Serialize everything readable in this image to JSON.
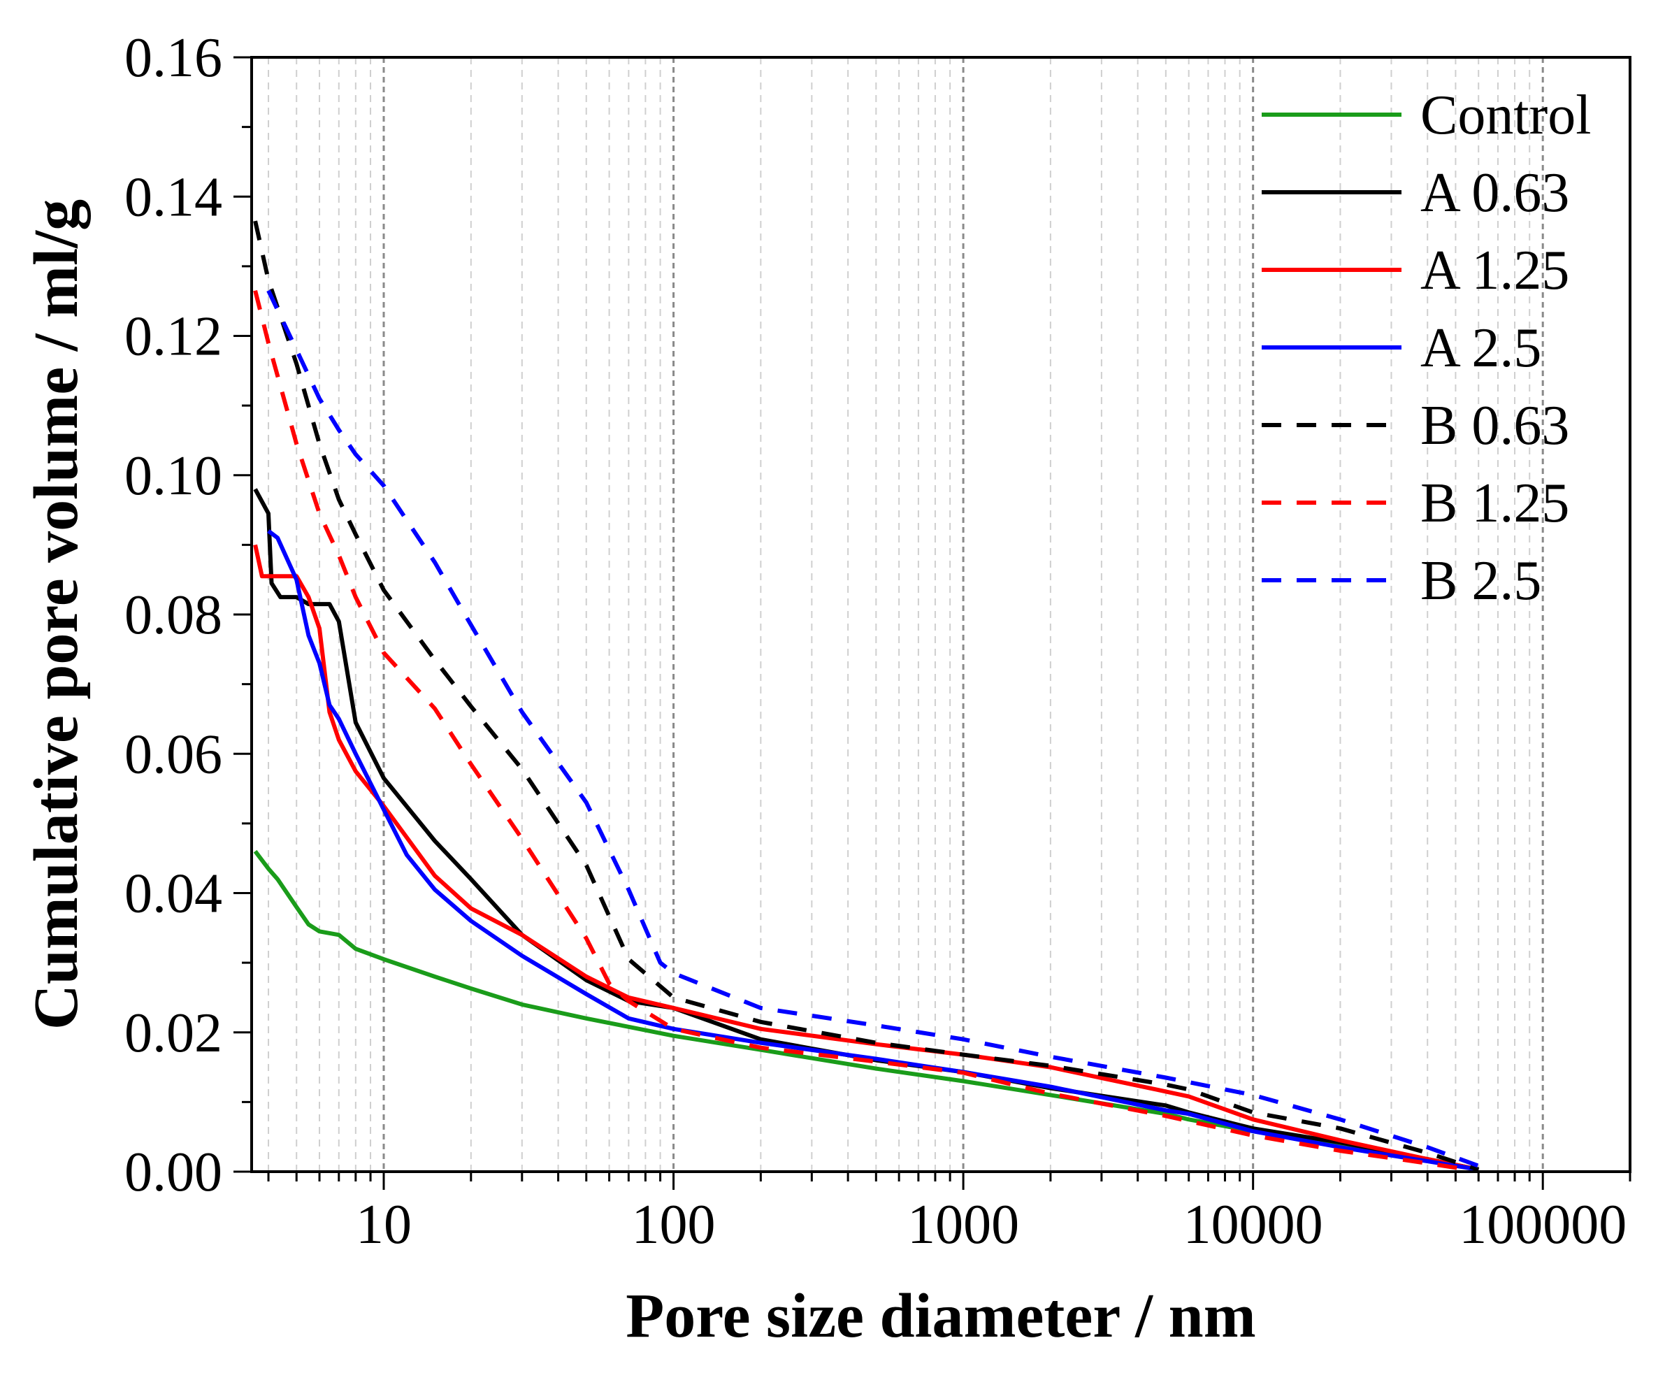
{
  "chart_data": {
    "type": "line",
    "title": "",
    "xlabel": "Pore size diameter / nm",
    "ylabel": "Cumulative pore volume / ml/g",
    "xscale": "log",
    "xlim": [
      3.5,
      200000
    ],
    "ylim": [
      0,
      0.16
    ],
    "xticks": [
      10,
      100,
      1000,
      10000,
      100000
    ],
    "xtick_labels": [
      "10",
      "100",
      "1000",
      "10000",
      "100000"
    ],
    "yticks": [
      0,
      0.02,
      0.04,
      0.06,
      0.08,
      0.1,
      0.12,
      0.14,
      0.16
    ],
    "ytick_labels": [
      "0.00",
      "0.02",
      "0.04",
      "0.06",
      "0.08",
      "0.10",
      "0.12",
      "0.14",
      "0.16"
    ],
    "grid": "vertical dashed at log decades and minor ticks",
    "legend_position": "top-right",
    "series": [
      {
        "name": "Control",
        "color": "#1a9c1a",
        "style": "solid",
        "x": [
          3.6,
          4,
          4.3,
          5,
          5.5,
          6,
          7,
          8,
          10,
          15,
          20,
          30,
          50,
          70,
          100,
          200,
          500,
          1000,
          2000,
          5000,
          6000,
          10000,
          20000,
          40000,
          60000
        ],
        "y": [
          0.046,
          0.0435,
          0.042,
          0.038,
          0.0355,
          0.0345,
          0.034,
          0.032,
          0.0305,
          0.028,
          0.0263,
          0.024,
          0.022,
          0.0208,
          0.0195,
          0.0175,
          0.0148,
          0.013,
          0.011,
          0.0083,
          0.0075,
          0.0058,
          0.0038,
          0.0018,
          0.0003
        ]
      },
      {
        "name": "A 0.63",
        "color": "#000000",
        "style": "solid",
        "x": [
          3.6,
          4,
          4.1,
          4.4,
          5,
          5.5,
          6,
          6.5,
          7,
          8,
          10,
          15,
          20,
          30,
          50,
          70,
          100,
          200,
          500,
          1000,
          2000,
          5000,
          6000,
          10000,
          20000,
          40000,
          60000
        ],
        "y": [
          0.098,
          0.0945,
          0.0845,
          0.0825,
          0.0825,
          0.0815,
          0.0815,
          0.0815,
          0.079,
          0.0645,
          0.0565,
          0.0475,
          0.042,
          0.034,
          0.0275,
          0.0245,
          0.0235,
          0.019,
          0.016,
          0.0143,
          0.012,
          0.0095,
          0.0085,
          0.0062,
          0.0042,
          0.0018,
          0.0003
        ]
      },
      {
        "name": "A 1.25",
        "color": "#ff0000",
        "style": "solid",
        "x": [
          3.6,
          3.8,
          4.5,
          5,
          5.5,
          6,
          6.5,
          7,
          8,
          10,
          15,
          20,
          30,
          50,
          70,
          100,
          200,
          500,
          1000,
          2000,
          5000,
          6000,
          10000,
          20000,
          40000,
          60000
        ],
        "y": [
          0.09,
          0.0855,
          0.0855,
          0.0855,
          0.0825,
          0.078,
          0.066,
          0.062,
          0.0575,
          0.0525,
          0.0425,
          0.0378,
          0.034,
          0.028,
          0.025,
          0.0235,
          0.0205,
          0.0183,
          0.0168,
          0.015,
          0.0115,
          0.0108,
          0.0075,
          0.0045,
          0.0018,
          0.0003
        ]
      },
      {
        "name": "A 2.5",
        "color": "#0000ff",
        "style": "solid",
        "x": [
          4,
          4.3,
          5,
          5.5,
          6,
          6.5,
          7,
          8,
          10,
          12,
          15,
          20,
          30,
          50,
          70,
          100,
          200,
          500,
          1000,
          2000,
          5000,
          6000,
          10000,
          20000,
          40000,
          60000
        ],
        "y": [
          0.092,
          0.091,
          0.085,
          0.077,
          0.073,
          0.067,
          0.065,
          0.06,
          0.052,
          0.0455,
          0.0405,
          0.036,
          0.031,
          0.0255,
          0.022,
          0.0205,
          0.0185,
          0.0162,
          0.0143,
          0.0122,
          0.0088,
          0.0083,
          0.0058,
          0.0035,
          0.0015,
          0.0003
        ]
      },
      {
        "name": "B 0.63",
        "color": "#000000",
        "style": "dashed",
        "x": [
          3.6,
          4,
          5,
          6,
          7,
          8,
          10,
          15,
          20,
          30,
          50,
          70,
          100,
          200,
          500,
          1000,
          2000,
          5000,
          6000,
          10000,
          20000,
          40000,
          60000
        ],
        "y": [
          0.1365,
          0.128,
          0.116,
          0.1045,
          0.0965,
          0.0915,
          0.0835,
          0.0735,
          0.0668,
          0.0578,
          0.044,
          0.0305,
          0.025,
          0.0215,
          0.0185,
          0.0168,
          0.0152,
          0.0125,
          0.0118,
          0.0085,
          0.0062,
          0.0027,
          0.0003
        ]
      },
      {
        "name": "B 1.25",
        "color": "#ff0000",
        "style": "dashed",
        "x": [
          3.6,
          4,
          5,
          6,
          7,
          8,
          10,
          15,
          20,
          30,
          50,
          60,
          70,
          100,
          200,
          500,
          1000,
          2000,
          5000,
          10000,
          20000,
          40000,
          55000
        ],
        "y": [
          0.1265,
          0.119,
          0.1045,
          0.0945,
          0.0885,
          0.0825,
          0.0745,
          0.0665,
          0.0585,
          0.0478,
          0.0335,
          0.027,
          0.0245,
          0.0205,
          0.0178,
          0.0158,
          0.0142,
          0.0112,
          0.008,
          0.0052,
          0.003,
          0.0012,
          0.0003
        ]
      },
      {
        "name": "B 2.5",
        "color": "#0000ff",
        "style": "dashed",
        "x": [
          4,
          5,
          6,
          7,
          8,
          10,
          15,
          20,
          30,
          50,
          70,
          90,
          100,
          200,
          500,
          1000,
          2000,
          5000,
          10000,
          20000,
          40000,
          65000
        ],
        "y": [
          0.1265,
          0.118,
          0.111,
          0.1065,
          0.103,
          0.0985,
          0.0875,
          0.0785,
          0.066,
          0.053,
          0.0405,
          0.03,
          0.0285,
          0.0235,
          0.021,
          0.019,
          0.0165,
          0.0135,
          0.011,
          0.0075,
          0.0035,
          0.0003
        ]
      }
    ]
  }
}
